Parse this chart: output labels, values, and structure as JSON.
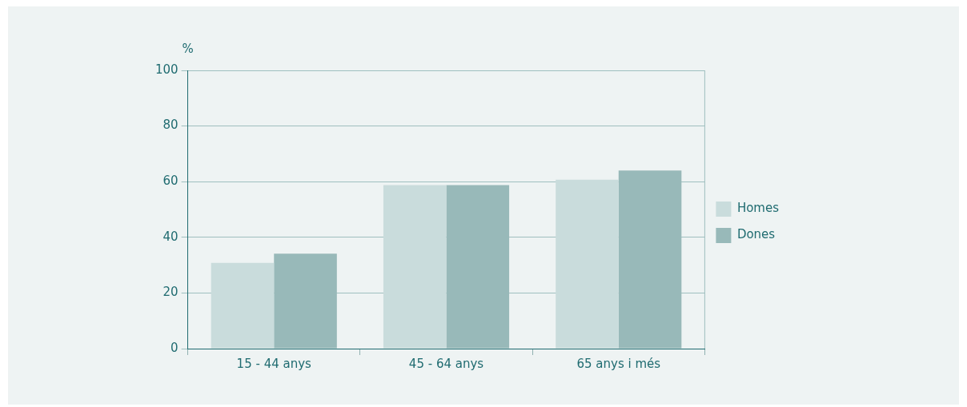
{
  "chart_data": {
    "type": "bar",
    "ylabel": "%",
    "categories": [
      "15 - 44 anys",
      "45 - 64 anys",
      "65 anys i més"
    ],
    "series": [
      {
        "name": "Homes",
        "color": "#c9dcdc",
        "values": [
          30.8,
          58.8,
          60.7
        ]
      },
      {
        "name": "Dones",
        "color": "#98b9b9",
        "values": [
          34.1,
          58.8,
          64.0
        ]
      }
    ],
    "ylim": [
      0,
      100
    ],
    "yticks": [
      0,
      20,
      40,
      60,
      80,
      100
    ],
    "grid": "y",
    "legend": "right"
  }
}
